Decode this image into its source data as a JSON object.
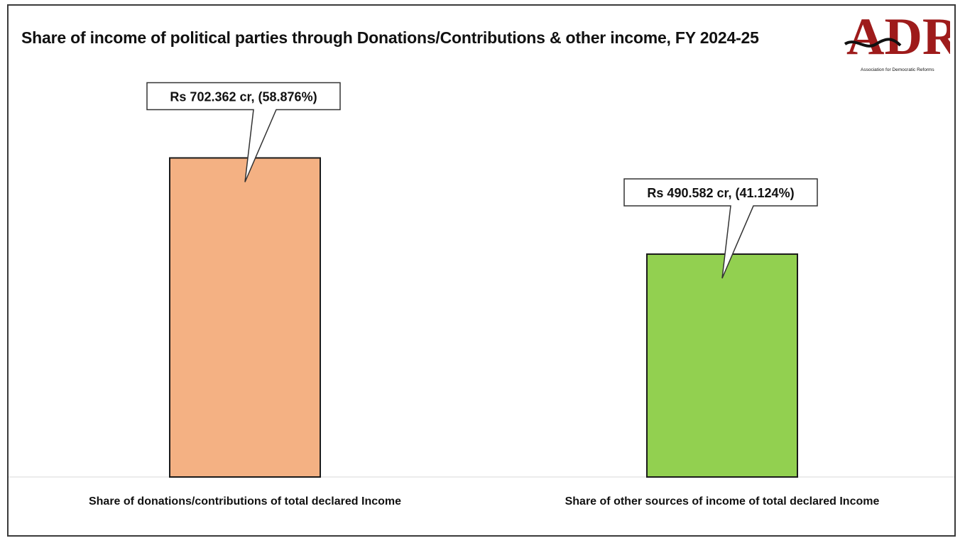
{
  "chart_data": {
    "type": "bar",
    "title": "Share of income of political parties through Donations/Contributions & other income, FY 2024-25",
    "categories": [
      "Share of donations/contributions of total declared Income",
      "Share of other sources of income of total declared Income"
    ],
    "values": [
      702.362,
      490.582
    ],
    "unit": "Rs cr",
    "percent": [
      58.876,
      41.124
    ],
    "data_labels": [
      "Rs 702.362 cr, (58.876%)",
      "Rs 490.582 cr, (41.124%)"
    ],
    "colors": [
      "#f4b183",
      "#92d050"
    ],
    "ylim": [
      0,
      1000
    ],
    "grid": false,
    "legend": "none"
  },
  "logo": {
    "text": "ADR",
    "tagline": "Association for Democratic Reforms",
    "color": "#9e1b1b"
  }
}
